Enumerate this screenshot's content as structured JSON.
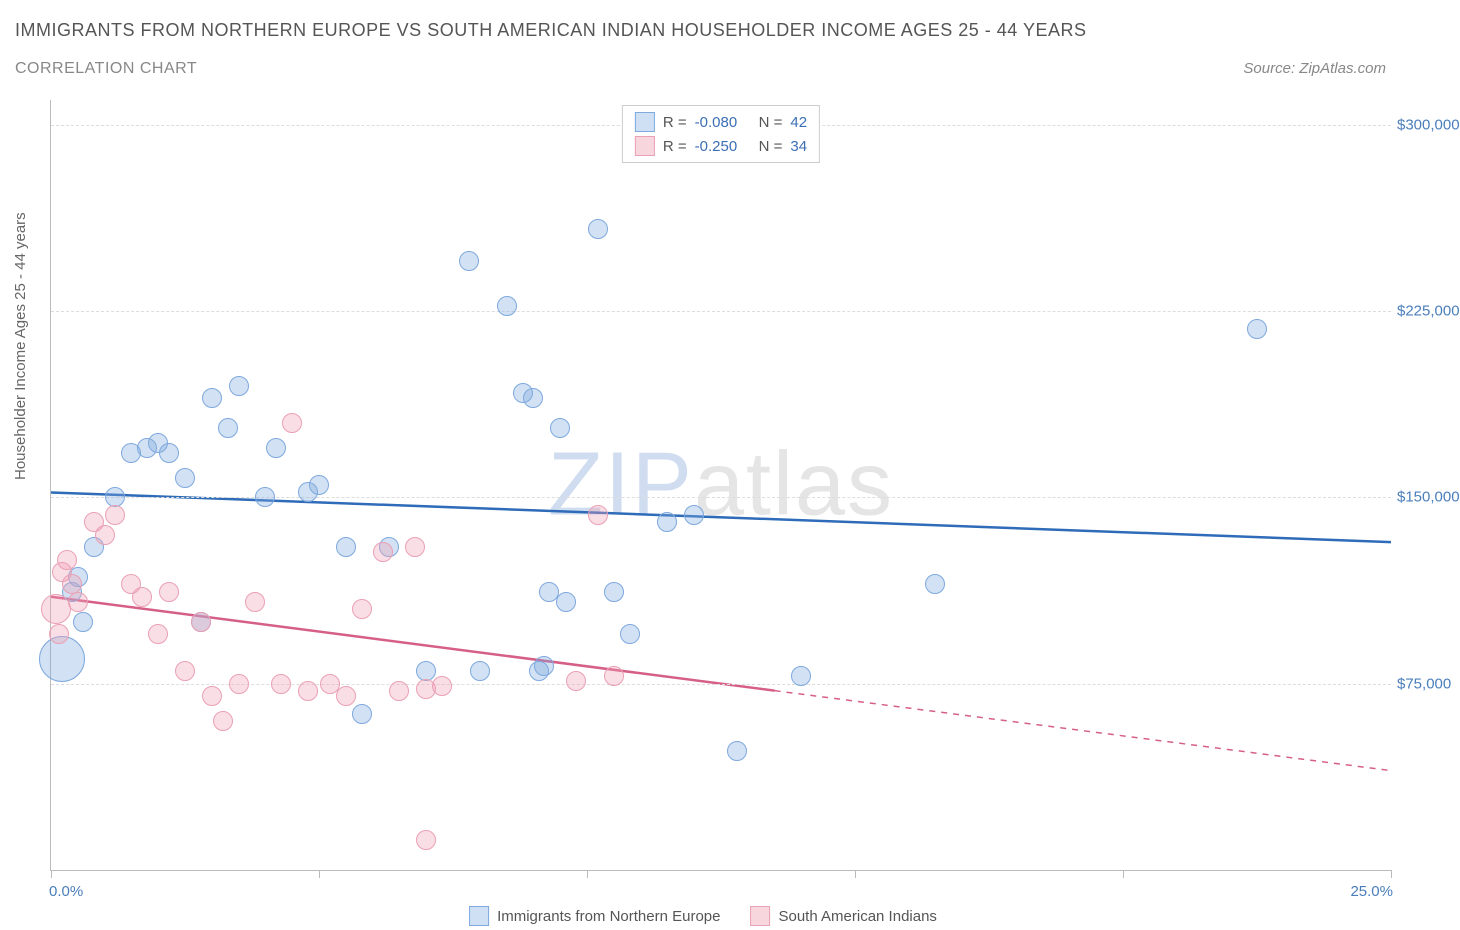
{
  "title": "IMMIGRANTS FROM NORTHERN EUROPE VS SOUTH AMERICAN INDIAN HOUSEHOLDER INCOME AGES 25 - 44 YEARS",
  "subtitle": "CORRELATION CHART",
  "source_label": "Source: ",
  "source_name": "ZipAtlas.com",
  "y_axis_label": "Householder Income Ages 25 - 44 years",
  "watermark_zip": "ZIP",
  "watermark_atlas": "atlas",
  "chart": {
    "type": "scatter",
    "xlim": [
      0,
      25
    ],
    "ylim": [
      0,
      310000
    ],
    "x_tick_positions": [
      0,
      5,
      10,
      15,
      20,
      25
    ],
    "x_left_label": "0.0%",
    "x_right_label": "25.0%",
    "y_gridlines": [
      75000,
      150000,
      225000,
      300000
    ],
    "y_tick_labels": [
      "$75,000",
      "$150,000",
      "$225,000",
      "$300,000"
    ],
    "grid_color": "#dddddd",
    "axis_color": "#bbbbbb",
    "background_color": "#ffffff",
    "series": [
      {
        "key": "northern_europe",
        "label": "Immigrants from Northern Europe",
        "color_fill": "rgba(126, 169, 222, 0.35)",
        "color_stroke": "#7ea9de",
        "swatch_fill": "#cfe0f5",
        "swatch_border": "#7ea9de",
        "r_value": "-0.080",
        "n_value": "42",
        "trend": {
          "y_at_x0": 152000,
          "y_at_x25": 132000,
          "solid_until_x": 25,
          "stroke": "#2e6bb8",
          "width": 2.5
        },
        "points": [
          {
            "x": 0.2,
            "y": 85000,
            "r": 22
          },
          {
            "x": 0.4,
            "y": 112000,
            "r": 9
          },
          {
            "x": 0.5,
            "y": 118000,
            "r": 9
          },
          {
            "x": 0.6,
            "y": 100000,
            "r": 9
          },
          {
            "x": 0.8,
            "y": 130000,
            "r": 9
          },
          {
            "x": 1.2,
            "y": 150000,
            "r": 9
          },
          {
            "x": 1.5,
            "y": 168000,
            "r": 9
          },
          {
            "x": 1.8,
            "y": 170000,
            "r": 9
          },
          {
            "x": 2.0,
            "y": 172000,
            "r": 9
          },
          {
            "x": 2.2,
            "y": 168000,
            "r": 9
          },
          {
            "x": 2.5,
            "y": 158000,
            "r": 9
          },
          {
            "x": 2.8,
            "y": 100000,
            "r": 9
          },
          {
            "x": 3.0,
            "y": 190000,
            "r": 9
          },
          {
            "x": 3.3,
            "y": 178000,
            "r": 9
          },
          {
            "x": 3.5,
            "y": 195000,
            "r": 9
          },
          {
            "x": 4.0,
            "y": 150000,
            "r": 9
          },
          {
            "x": 4.2,
            "y": 170000,
            "r": 9
          },
          {
            "x": 4.8,
            "y": 152000,
            "r": 9
          },
          {
            "x": 5.0,
            "y": 155000,
            "r": 9
          },
          {
            "x": 5.5,
            "y": 130000,
            "r": 9
          },
          {
            "x": 5.8,
            "y": 63000,
            "r": 9
          },
          {
            "x": 6.3,
            "y": 130000,
            "r": 9
          },
          {
            "x": 7.0,
            "y": 80000,
            "r": 9
          },
          {
            "x": 7.8,
            "y": 245000,
            "r": 9
          },
          {
            "x": 8.0,
            "y": 80000,
            "r": 9
          },
          {
            "x": 8.5,
            "y": 227000,
            "r": 9
          },
          {
            "x": 8.8,
            "y": 192000,
            "r": 9
          },
          {
            "x": 9.0,
            "y": 190000,
            "r": 9
          },
          {
            "x": 9.1,
            "y": 80000,
            "r": 9
          },
          {
            "x": 9.2,
            "y": 82000,
            "r": 9
          },
          {
            "x": 9.3,
            "y": 112000,
            "r": 9
          },
          {
            "x": 9.5,
            "y": 178000,
            "r": 9
          },
          {
            "x": 9.6,
            "y": 108000,
            "r": 9
          },
          {
            "x": 10.2,
            "y": 258000,
            "r": 9
          },
          {
            "x": 10.5,
            "y": 112000,
            "r": 9
          },
          {
            "x": 10.8,
            "y": 95000,
            "r": 9
          },
          {
            "x": 11.5,
            "y": 140000,
            "r": 9
          },
          {
            "x": 12.0,
            "y": 143000,
            "r": 9
          },
          {
            "x": 12.8,
            "y": 48000,
            "r": 9
          },
          {
            "x": 14.0,
            "y": 78000,
            "r": 9
          },
          {
            "x": 16.5,
            "y": 115000,
            "r": 9
          },
          {
            "x": 22.5,
            "y": 218000,
            "r": 9
          }
        ]
      },
      {
        "key": "south_american",
        "label": "South American Indians",
        "color_fill": "rgba(240, 160, 180, 0.35)",
        "color_stroke": "#eaa0b5",
        "swatch_fill": "#f7d6de",
        "swatch_border": "#eaa0b5",
        "r_value": "-0.250",
        "n_value": "34",
        "trend": {
          "y_at_x0": 110000,
          "y_at_x25": 40000,
          "solid_until_x": 13.5,
          "stroke": "#d65f87",
          "width": 2.5
        },
        "points": [
          {
            "x": 0.1,
            "y": 105000,
            "r": 14
          },
          {
            "x": 0.15,
            "y": 95000,
            "r": 9
          },
          {
            "x": 0.2,
            "y": 120000,
            "r": 9
          },
          {
            "x": 0.3,
            "y": 125000,
            "r": 9
          },
          {
            "x": 0.4,
            "y": 115000,
            "r": 9
          },
          {
            "x": 0.5,
            "y": 108000,
            "r": 9
          },
          {
            "x": 0.8,
            "y": 140000,
            "r": 9
          },
          {
            "x": 1.0,
            "y": 135000,
            "r": 9
          },
          {
            "x": 1.2,
            "y": 143000,
            "r": 9
          },
          {
            "x": 1.5,
            "y": 115000,
            "r": 9
          },
          {
            "x": 1.7,
            "y": 110000,
            "r": 9
          },
          {
            "x": 2.0,
            "y": 95000,
            "r": 9
          },
          {
            "x": 2.2,
            "y": 112000,
            "r": 9
          },
          {
            "x": 2.5,
            "y": 80000,
            "r": 9
          },
          {
            "x": 2.8,
            "y": 100000,
            "r": 9
          },
          {
            "x": 3.0,
            "y": 70000,
            "r": 9
          },
          {
            "x": 3.2,
            "y": 60000,
            "r": 9
          },
          {
            "x": 3.5,
            "y": 75000,
            "r": 9
          },
          {
            "x": 3.8,
            "y": 108000,
            "r": 9
          },
          {
            "x": 4.3,
            "y": 75000,
            "r": 9
          },
          {
            "x": 4.5,
            "y": 180000,
            "r": 9
          },
          {
            "x": 4.8,
            "y": 72000,
            "r": 9
          },
          {
            "x": 5.2,
            "y": 75000,
            "r": 9
          },
          {
            "x": 5.5,
            "y": 70000,
            "r": 9
          },
          {
            "x": 5.8,
            "y": 105000,
            "r": 9
          },
          {
            "x": 6.2,
            "y": 128000,
            "r": 9
          },
          {
            "x": 6.5,
            "y": 72000,
            "r": 9
          },
          {
            "x": 6.8,
            "y": 130000,
            "r": 9
          },
          {
            "x": 7.0,
            "y": 73000,
            "r": 9
          },
          {
            "x": 7.0,
            "y": 12000,
            "r": 9
          },
          {
            "x": 7.3,
            "y": 74000,
            "r": 9
          },
          {
            "x": 9.8,
            "y": 76000,
            "r": 9
          },
          {
            "x": 10.2,
            "y": 143000,
            "r": 9
          },
          {
            "x": 10.5,
            "y": 78000,
            "r": 9
          }
        ]
      }
    ]
  },
  "legend_top": {
    "r_prefix": "R =",
    "n_prefix": "N ="
  }
}
